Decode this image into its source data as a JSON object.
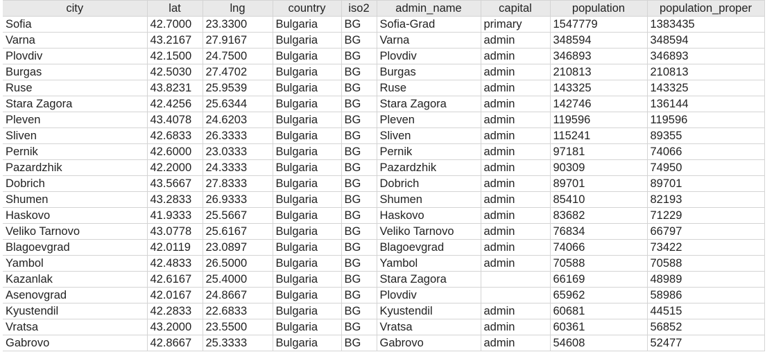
{
  "table": {
    "columns": [
      "city",
      "lat",
      "lng",
      "country",
      "iso2",
      "admin_name",
      "capital",
      "population",
      "population_proper"
    ],
    "rows": [
      [
        "Sofia",
        "42.7000",
        "23.3300",
        "Bulgaria",
        "BG",
        "Sofia-Grad",
        "primary",
        "1547779",
        "1383435"
      ],
      [
        "Varna",
        "43.2167",
        "27.9167",
        "Bulgaria",
        "BG",
        "Varna",
        "admin",
        "348594",
        "348594"
      ],
      [
        "Plovdiv",
        "42.1500",
        "24.7500",
        "Bulgaria",
        "BG",
        "Plovdiv",
        "admin",
        "346893",
        "346893"
      ],
      [
        "Burgas",
        "42.5030",
        "27.4702",
        "Bulgaria",
        "BG",
        "Burgas",
        "admin",
        "210813",
        "210813"
      ],
      [
        "Ruse",
        "43.8231",
        "25.9539",
        "Bulgaria",
        "BG",
        "Ruse",
        "admin",
        "143325",
        "143325"
      ],
      [
        "Stara Zagora",
        "42.4256",
        "25.6344",
        "Bulgaria",
        "BG",
        "Stara Zagora",
        "admin",
        "142746",
        "136144"
      ],
      [
        "Pleven",
        "43.4078",
        "24.6203",
        "Bulgaria",
        "BG",
        "Pleven",
        "admin",
        "119596",
        "119596"
      ],
      [
        "Sliven",
        "42.6833",
        "26.3333",
        "Bulgaria",
        "BG",
        "Sliven",
        "admin",
        "115241",
        "89355"
      ],
      [
        "Pernik",
        "42.6000",
        "23.0333",
        "Bulgaria",
        "BG",
        "Pernik",
        "admin",
        "97181",
        "74066"
      ],
      [
        "Pazardzhik",
        "42.2000",
        "24.3333",
        "Bulgaria",
        "BG",
        "Pazardzhik",
        "admin",
        "90309",
        "74950"
      ],
      [
        "Dobrich",
        "43.5667",
        "27.8333",
        "Bulgaria",
        "BG",
        "Dobrich",
        "admin",
        "89701",
        "89701"
      ],
      [
        "Shumen",
        "43.2833",
        "26.9333",
        "Bulgaria",
        "BG",
        "Shumen",
        "admin",
        "85410",
        "82193"
      ],
      [
        "Haskovo",
        "41.9333",
        "25.5667",
        "Bulgaria",
        "BG",
        "Haskovo",
        "admin",
        "83682",
        "71229"
      ],
      [
        "Veliko Tarnovo",
        "43.0778",
        "25.6167",
        "Bulgaria",
        "BG",
        "Veliko Tarnovo",
        "admin",
        "76834",
        "66797"
      ],
      [
        "Blagoevgrad",
        "42.0119",
        "23.0897",
        "Bulgaria",
        "BG",
        "Blagoevgrad",
        "admin",
        "74066",
        "73422"
      ],
      [
        "Yambol",
        "42.4833",
        "26.5000",
        "Bulgaria",
        "BG",
        "Yambol",
        "admin",
        "70588",
        "70588"
      ],
      [
        "Kazanlak",
        "42.6167",
        "25.4000",
        "Bulgaria",
        "BG",
        "Stara Zagora",
        "",
        "66169",
        "48989"
      ],
      [
        "Asenovgrad",
        "42.0167",
        "24.8667",
        "Bulgaria",
        "BG",
        "Plovdiv",
        "",
        "65962",
        "58986"
      ],
      [
        "Kyustendil",
        "42.2833",
        "22.6833",
        "Bulgaria",
        "BG",
        "Kyustendil",
        "admin",
        "60681",
        "44515"
      ],
      [
        "Vratsa",
        "43.2000",
        "23.5500",
        "Bulgaria",
        "BG",
        "Vratsa",
        "admin",
        "60361",
        "56852"
      ],
      [
        "Gabrovo",
        "42.8667",
        "25.3333",
        "Bulgaria",
        "BG",
        "Gabrovo",
        "admin",
        "54608",
        "52477"
      ]
    ]
  }
}
